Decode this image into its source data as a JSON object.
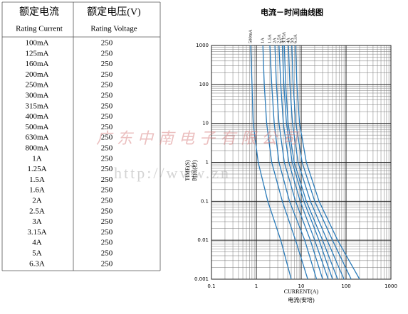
{
  "table": {
    "headers": [
      [
        "额定电流",
        "Rating Current"
      ],
      [
        "额定电压(V)",
        "Rating Voltage"
      ]
    ],
    "rows": [
      [
        "100mA",
        250
      ],
      [
        "125mA",
        250
      ],
      [
        "160mA",
        250
      ],
      [
        "200mA",
        250
      ],
      [
        "250mA",
        250
      ],
      [
        "300mA",
        250
      ],
      [
        "315mA",
        250
      ],
      [
        "400mA",
        250
      ],
      [
        "500mA",
        250
      ],
      [
        "630mA",
        250
      ],
      [
        "800mA",
        250
      ],
      [
        "1A",
        250
      ],
      [
        "1.25A",
        250
      ],
      [
        "1.5A",
        250
      ],
      [
        "1.6A",
        250
      ],
      [
        "2A",
        250
      ],
      [
        "2.5A",
        250
      ],
      [
        "3A",
        250
      ],
      [
        "3.15A",
        250
      ],
      [
        "4A",
        250
      ],
      [
        "5A",
        250
      ],
      [
        "6.3A",
        250
      ]
    ]
  },
  "chart_data": {
    "type": "line",
    "title": "电流－时间曲线图",
    "x_label": "CURRENT(A)",
    "x_label_cn": "电流(安培)",
    "y_label": "TIME(S)",
    "y_label_cn": "时间(秒)",
    "x_log": true,
    "y_log": true,
    "grid": true,
    "xlim": [
      0.1,
      1000
    ],
    "ylim": [
      0.001,
      1000
    ],
    "xticks": [
      0.1,
      1,
      10,
      100,
      1000
    ],
    "yticks": [
      1000,
      100,
      10,
      1,
      0.1,
      0.01,
      0.001
    ],
    "series": [
      {
        "name": "500mA",
        "color": "#2b7bb9",
        "x": [
          0.75,
          0.8,
          0.85,
          1.1,
          1.8,
          3.5,
          6
        ],
        "values": [
          1000,
          100,
          10,
          1,
          0.1,
          0.01,
          0.001
        ]
      },
      {
        "name": "1A",
        "color": "#2b7bb9",
        "x": [
          1.4,
          1.5,
          1.7,
          2.2,
          3.8,
          7.5,
          14
        ],
        "values": [
          1000,
          100,
          10,
          1,
          0.1,
          0.01,
          0.001
        ]
      },
      {
        "name": "1.5A",
        "color": "#2b7bb9",
        "x": [
          2,
          2.2,
          2.5,
          3.2,
          5.5,
          12,
          22
        ],
        "values": [
          1000,
          100,
          10,
          1,
          0.1,
          0.01,
          0.001
        ]
      },
      {
        "name": "2A",
        "color": "#2b7bb9",
        "x": [
          2.6,
          2.8,
          3.2,
          4.2,
          7.5,
          16,
          30
        ],
        "values": [
          1000,
          100,
          10,
          1,
          0.1,
          0.01,
          0.001
        ]
      },
      {
        "name": "2.5A",
        "color": "#2b7bb9",
        "x": [
          3.2,
          3.5,
          4,
          5.3,
          9.5,
          20,
          40
        ],
        "values": [
          1000,
          100,
          10,
          1,
          0.1,
          0.01,
          0.001
        ]
      },
      {
        "name": "3A",
        "color": "#2b7bb9",
        "x": [
          3.8,
          4.1,
          4.7,
          6.3,
          11.5,
          25,
          50
        ],
        "values": [
          1000,
          100,
          10,
          1,
          0.1,
          0.01,
          0.001
        ]
      },
      {
        "name": "3.15A",
        "color": "#2b7bb9",
        "x": [
          4.2,
          4.5,
          5.1,
          7,
          13,
          30,
          65
        ],
        "values": [
          1000,
          100,
          10,
          1,
          0.1,
          0.01,
          0.001
        ]
      },
      {
        "name": "4A",
        "color": "#2b7bb9",
        "x": [
          5.2,
          5.6,
          6.4,
          8.5,
          16,
          38,
          90
        ],
        "values": [
          1000,
          100,
          10,
          1,
          0.1,
          0.01,
          0.001
        ]
      },
      {
        "name": "5A",
        "color": "#2b7bb9",
        "x": [
          6.2,
          6.6,
          7.6,
          10.5,
          20,
          50,
          130
        ],
        "values": [
          1000,
          100,
          10,
          1,
          0.1,
          0.01,
          0.001
        ]
      },
      {
        "name": "6.3A",
        "color": "#2b7bb9",
        "x": [
          7.5,
          8,
          9.2,
          13,
          25,
          65,
          200
        ],
        "values": [
          1000,
          100,
          10,
          1,
          0.1,
          0.01,
          0.001
        ]
      }
    ]
  },
  "watermark": {
    "text": "广 东 中 南 电 子 有 限 公 司",
    "url": "http://www.zn"
  }
}
